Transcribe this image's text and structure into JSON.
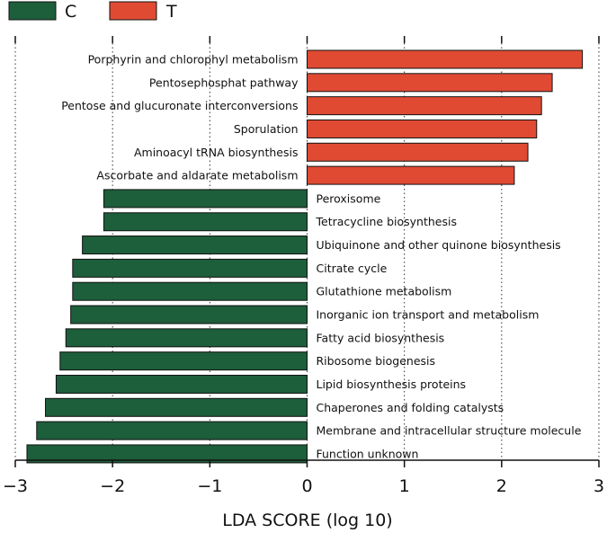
{
  "chart_data": {
    "type": "bar",
    "orientation": "horizontal",
    "title": "",
    "xlabel": "LDA SCORE (log 10)",
    "ylabel": "",
    "xlim": [
      -3,
      3
    ],
    "xticks": [
      -3,
      -2,
      -1,
      0,
      1,
      2,
      3
    ],
    "xtick_labels": [
      "−3",
      "−2",
      "−1",
      "0",
      "1",
      "2",
      "3"
    ],
    "grid": "vertical dotted lines at major ticks",
    "legend": {
      "placement": "top-left",
      "entries": [
        {
          "name": "C",
          "color": "#1d5e3b"
        },
        {
          "name": "T",
          "color": "#e04a33"
        }
      ]
    },
    "bars": [
      {
        "label": "Porphyrin and chlorophyl metabolism",
        "value": 2.83,
        "group": "T"
      },
      {
        "label": "Pentosephosphat pathway",
        "value": 2.52,
        "group": "T"
      },
      {
        "label": "Pentose and glucuronate interconversions",
        "value": 2.41,
        "group": "T"
      },
      {
        "label": "Sporulation",
        "value": 2.36,
        "group": "T"
      },
      {
        "label": "Aminoacyl tRNA biosynthesis",
        "value": 2.27,
        "group": "T"
      },
      {
        "label": "Ascorbate and aldarate metabolism",
        "value": 2.13,
        "group": "T"
      },
      {
        "label": "Peroxisome",
        "value": -2.09,
        "group": "C"
      },
      {
        "label": "Tetracycline biosynthesis",
        "value": -2.09,
        "group": "C"
      },
      {
        "label": "Ubiquinone and other quinone biosynthesis",
        "value": -2.31,
        "group": "C"
      },
      {
        "label": "Citrate cycle",
        "value": -2.41,
        "group": "C"
      },
      {
        "label": "Glutathione metabolism",
        "value": -2.41,
        "group": "C"
      },
      {
        "label": "Inorganic ion transport and metabolism",
        "value": -2.43,
        "group": "C"
      },
      {
        "label": "Fatty acid biosynthesis",
        "value": -2.48,
        "group": "C"
      },
      {
        "label": "Ribosome biogenesis",
        "value": -2.54,
        "group": "C"
      },
      {
        "label": "Lipid biosynthesis proteins",
        "value": -2.58,
        "group": "C"
      },
      {
        "label": "Chaperones and folding catalysts",
        "value": -2.69,
        "group": "C"
      },
      {
        "label": "Membrane and intracellular structure molecule",
        "value": -2.78,
        "group": "C"
      },
      {
        "label": "Function unknown",
        "value": -2.88,
        "group": "C"
      }
    ]
  }
}
